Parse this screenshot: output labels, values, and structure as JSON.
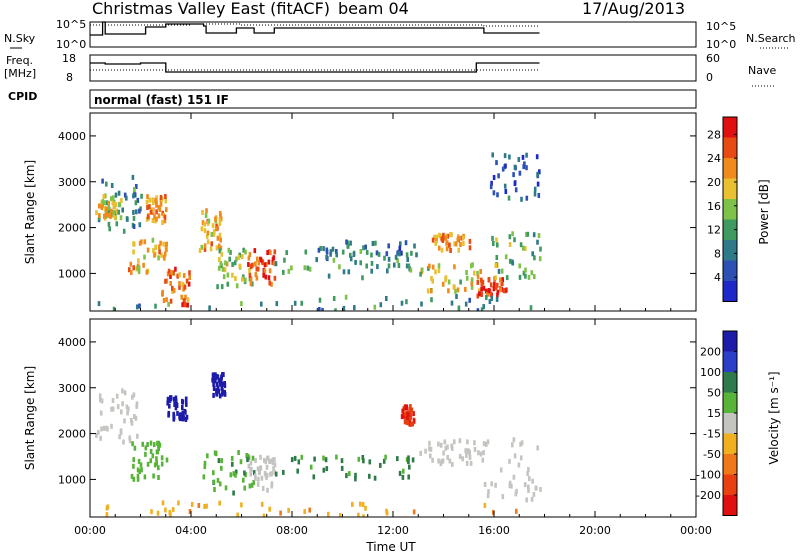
{
  "header": {
    "station": "Christmas Valley East (fitACF)",
    "beam": "beam 04",
    "date": "17/Aug/2013"
  },
  "panels_labels": {
    "nsky": "N.Sky",
    "nsky_hi": "10^5",
    "nsky_lo": "10^0",
    "nsearch": "N.Search",
    "nsearch_hi": "10^5",
    "nsearch_lo": "10^0",
    "freq_line1": "Freq.",
    "freq_line2": "[MHz]",
    "freq_hi": "18",
    "freq_lo": "8",
    "nave": "Nave",
    "nave_hi": "60",
    "nave_lo": "0",
    "cpid": "CPID",
    "cpid_value": "normal (fast) 151 IF"
  },
  "axes": {
    "ylabel": "Slant Range [km]",
    "xlabel": "Time UT",
    "yticks": [
      "1000",
      "2000",
      "3000",
      "4000"
    ],
    "xticks": [
      "00:00",
      "04:00",
      "08:00",
      "12:00",
      "16:00",
      "20:00",
      "00:00"
    ]
  },
  "colorbars": {
    "power_label": "Power [dB]",
    "power_ticks": [
      "4",
      "8",
      "12",
      "16",
      "20",
      "24",
      "28"
    ],
    "velocity_label": "Velocity [m s⁻¹]",
    "velocity_ticks": [
      "-200",
      "-100",
      "-50",
      "-15",
      "15",
      "50",
      "100",
      "200"
    ]
  },
  "chart_data": [
    {
      "type": "heatmap",
      "title": "Power",
      "xlabel": "Time UT",
      "ylabel": "Slant Range [km]",
      "xlim": [
        0,
        24
      ],
      "ylim": [
        180,
        4500
      ],
      "colorbar": {
        "label": "Power [dB]",
        "range": [
          0,
          31
        ]
      },
      "regions": [
        {
          "t0": 0.3,
          "t1": 2.0,
          "r0": 1800,
          "r1": 3100,
          "v": 10
        },
        {
          "t0": 0.2,
          "t1": 1.2,
          "r0": 2200,
          "r1": 2700,
          "v": 18
        },
        {
          "t0": 1.5,
          "t1": 3.0,
          "r0": 1000,
          "r1": 1800,
          "v": 20
        },
        {
          "t0": 2.2,
          "t1": 3.0,
          "r0": 2100,
          "r1": 2700,
          "v": 22
        },
        {
          "t0": 2.8,
          "t1": 3.9,
          "r0": 300,
          "r1": 1100,
          "v": 24
        },
        {
          "t0": 4.3,
          "t1": 5.2,
          "r0": 1500,
          "r1": 2400,
          "v": 20
        },
        {
          "t0": 5.0,
          "t1": 6.5,
          "r0": 700,
          "r1": 1600,
          "v": 16
        },
        {
          "t0": 6.2,
          "t1": 7.3,
          "r0": 750,
          "r1": 1500,
          "v": 26
        },
        {
          "t0": 7.3,
          "t1": 13.0,
          "r0": 900,
          "r1": 1500,
          "v": 12
        },
        {
          "t0": 9.0,
          "t1": 13.0,
          "r0": 1300,
          "r1": 1700,
          "v": 8
        },
        {
          "t0": 13.0,
          "t1": 15.5,
          "r0": 600,
          "r1": 1200,
          "v": 18
        },
        {
          "t0": 13.5,
          "t1": 15.0,
          "r0": 1500,
          "r1": 1850,
          "v": 22
        },
        {
          "t0": 15.3,
          "t1": 16.5,
          "r0": 500,
          "r1": 900,
          "v": 28
        },
        {
          "t0": 15.8,
          "t1": 17.8,
          "r0": 900,
          "r1": 1900,
          "v": 14
        },
        {
          "t0": 15.8,
          "t1": 17.8,
          "r0": 2600,
          "r1": 3600,
          "v": 6
        },
        {
          "t0": 0.0,
          "t1": 17.8,
          "r0": 180,
          "r1": 500,
          "v": 10
        }
      ]
    },
    {
      "type": "heatmap",
      "title": "Velocity",
      "xlabel": "Time UT",
      "ylabel": "Slant Range [km]",
      "xlim": [
        0,
        24
      ],
      "ylim": [
        180,
        4500
      ],
      "colorbar": {
        "label": "Velocity [m s⁻¹]",
        "range": [
          -250,
          250
        ]
      },
      "regions": [
        {
          "t0": 0.2,
          "t1": 2.0,
          "r0": 1800,
          "r1": 3000,
          "v": 0
        },
        {
          "t0": 1.6,
          "t1": 3.0,
          "r0": 1000,
          "r1": 1800,
          "v": 30
        },
        {
          "t0": 3.0,
          "t1": 3.8,
          "r0": 2300,
          "r1": 2800,
          "v": 180
        },
        {
          "t0": 4.8,
          "t1": 5.3,
          "r0": 2800,
          "r1": 3300,
          "v": 180
        },
        {
          "t0": 4.3,
          "t1": 6.5,
          "r0": 700,
          "r1": 1600,
          "v": 40
        },
        {
          "t0": 6.2,
          "t1": 7.3,
          "r0": 750,
          "r1": 1500,
          "v": 0
        },
        {
          "t0": 7.3,
          "t1": 12.8,
          "r0": 1000,
          "r1": 1500,
          "v": 60
        },
        {
          "t0": 12.3,
          "t1": 12.8,
          "r0": 2200,
          "r1": 2600,
          "v": -200
        },
        {
          "t0": 13.0,
          "t1": 15.5,
          "r0": 1300,
          "r1": 1850,
          "v": 0
        },
        {
          "t0": 15.5,
          "t1": 17.8,
          "r0": 500,
          "r1": 1900,
          "v": 0
        },
        {
          "t0": 0.0,
          "t1": 17.8,
          "r0": 180,
          "r1": 500,
          "v": -40
        }
      ]
    }
  ]
}
